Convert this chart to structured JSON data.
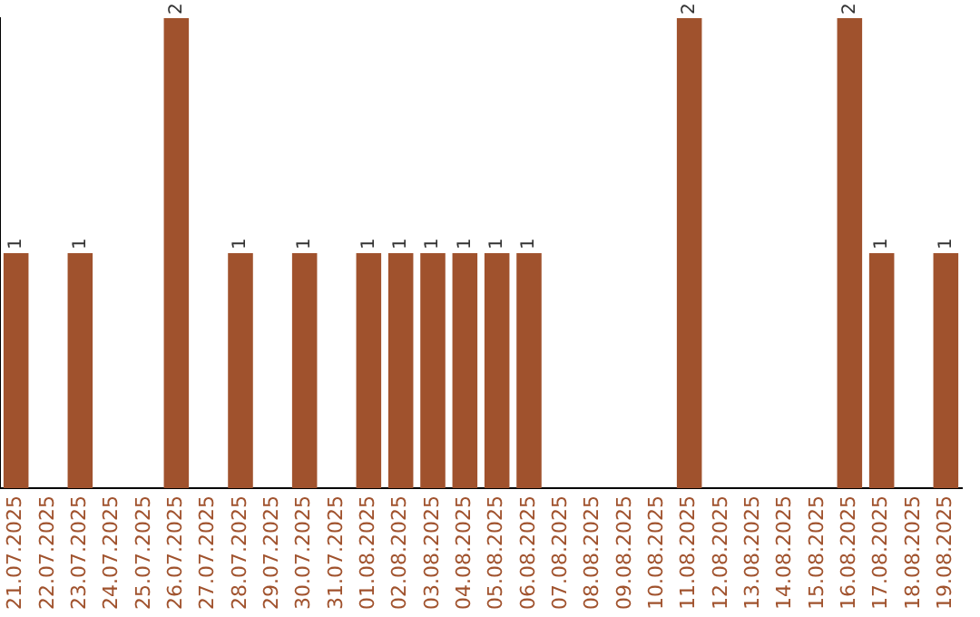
{
  "chart_data": {
    "type": "bar",
    "categories": [
      "21.07.2025",
      "22.07.2025",
      "23.07.2025",
      "24.07.2025",
      "25.07.2025",
      "26.07.2025",
      "27.07.2025",
      "28.07.2025",
      "29.07.2025",
      "30.07.2025",
      "31.07.2025",
      "01.08.2025",
      "02.08.2025",
      "03.08.2025",
      "04.08.2025",
      "05.08.2025",
      "06.08.2025",
      "07.08.2025",
      "08.08.2025",
      "09.08.2025",
      "10.08.2025",
      "11.08.2025",
      "12.08.2025",
      "13.08.2025",
      "14.08.2025",
      "15.08.2025",
      "16.08.2025",
      "17.08.2025",
      "18.08.2025",
      "19.08.2025"
    ],
    "values": [
      1,
      0,
      1,
      0,
      0,
      2,
      0,
      1,
      0,
      1,
      0,
      1,
      1,
      1,
      1,
      1,
      1,
      0,
      0,
      0,
      0,
      2,
      0,
      0,
      0,
      0,
      2,
      1,
      0,
      1
    ],
    "value_labels": [
      "1",
      null,
      "1",
      null,
      null,
      "2",
      null,
      "1",
      null,
      "1",
      null,
      "1",
      "1",
      "1",
      "1",
      "1",
      "1",
      null,
      null,
      null,
      null,
      "2",
      null,
      null,
      null,
      null,
      "2",
      "1",
      null,
      "1"
    ],
    "color": "#a0522d",
    "ylim": [
      0,
      2
    ],
    "tick_labels": "x",
    "grid": false,
    "legend": false
  }
}
